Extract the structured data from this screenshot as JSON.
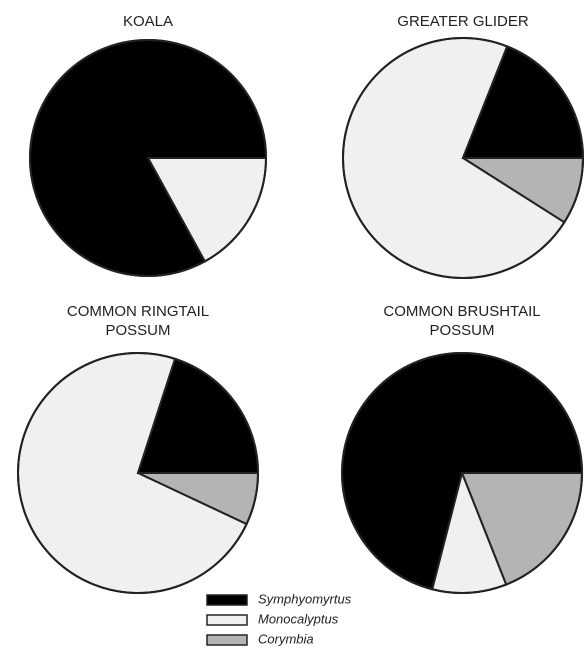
{
  "chart_data": [
    {
      "type": "pie",
      "title": "KOALA",
      "categories": [
        "Symphyomyrtus",
        "Monocalyptus",
        "Corymbia"
      ],
      "values": [
        83,
        17,
        0
      ],
      "colors": [
        "#000000",
        "#f0f0f0",
        "#b4b4b4"
      ]
    },
    {
      "type": "pie",
      "title": "GREATER GLIDER",
      "categories": [
        "Symphyomyrtus",
        "Monocalyptus",
        "Corymbia"
      ],
      "values": [
        19,
        72,
        9
      ],
      "colors": [
        "#000000",
        "#f0f0f0",
        "#b4b4b4"
      ]
    },
    {
      "type": "pie",
      "title": "COMMON RINGTAIL POSSUM",
      "categories": [
        "Symphyomyrtus",
        "Monocalyptus",
        "Corymbia"
      ],
      "values": [
        20,
        73,
        7
      ],
      "colors": [
        "#000000",
        "#f0f0f0",
        "#b4b4b4"
      ]
    },
    {
      "type": "pie",
      "title": "COMMON BRUSHTAIL POSSUM",
      "categories": [
        "Symphyomyrtus",
        "Monocalyptus",
        "Corymbia"
      ],
      "values": [
        71,
        10,
        19
      ],
      "colors": [
        "#000000",
        "#f0f0f0",
        "#b4b4b4"
      ]
    }
  ]
}
